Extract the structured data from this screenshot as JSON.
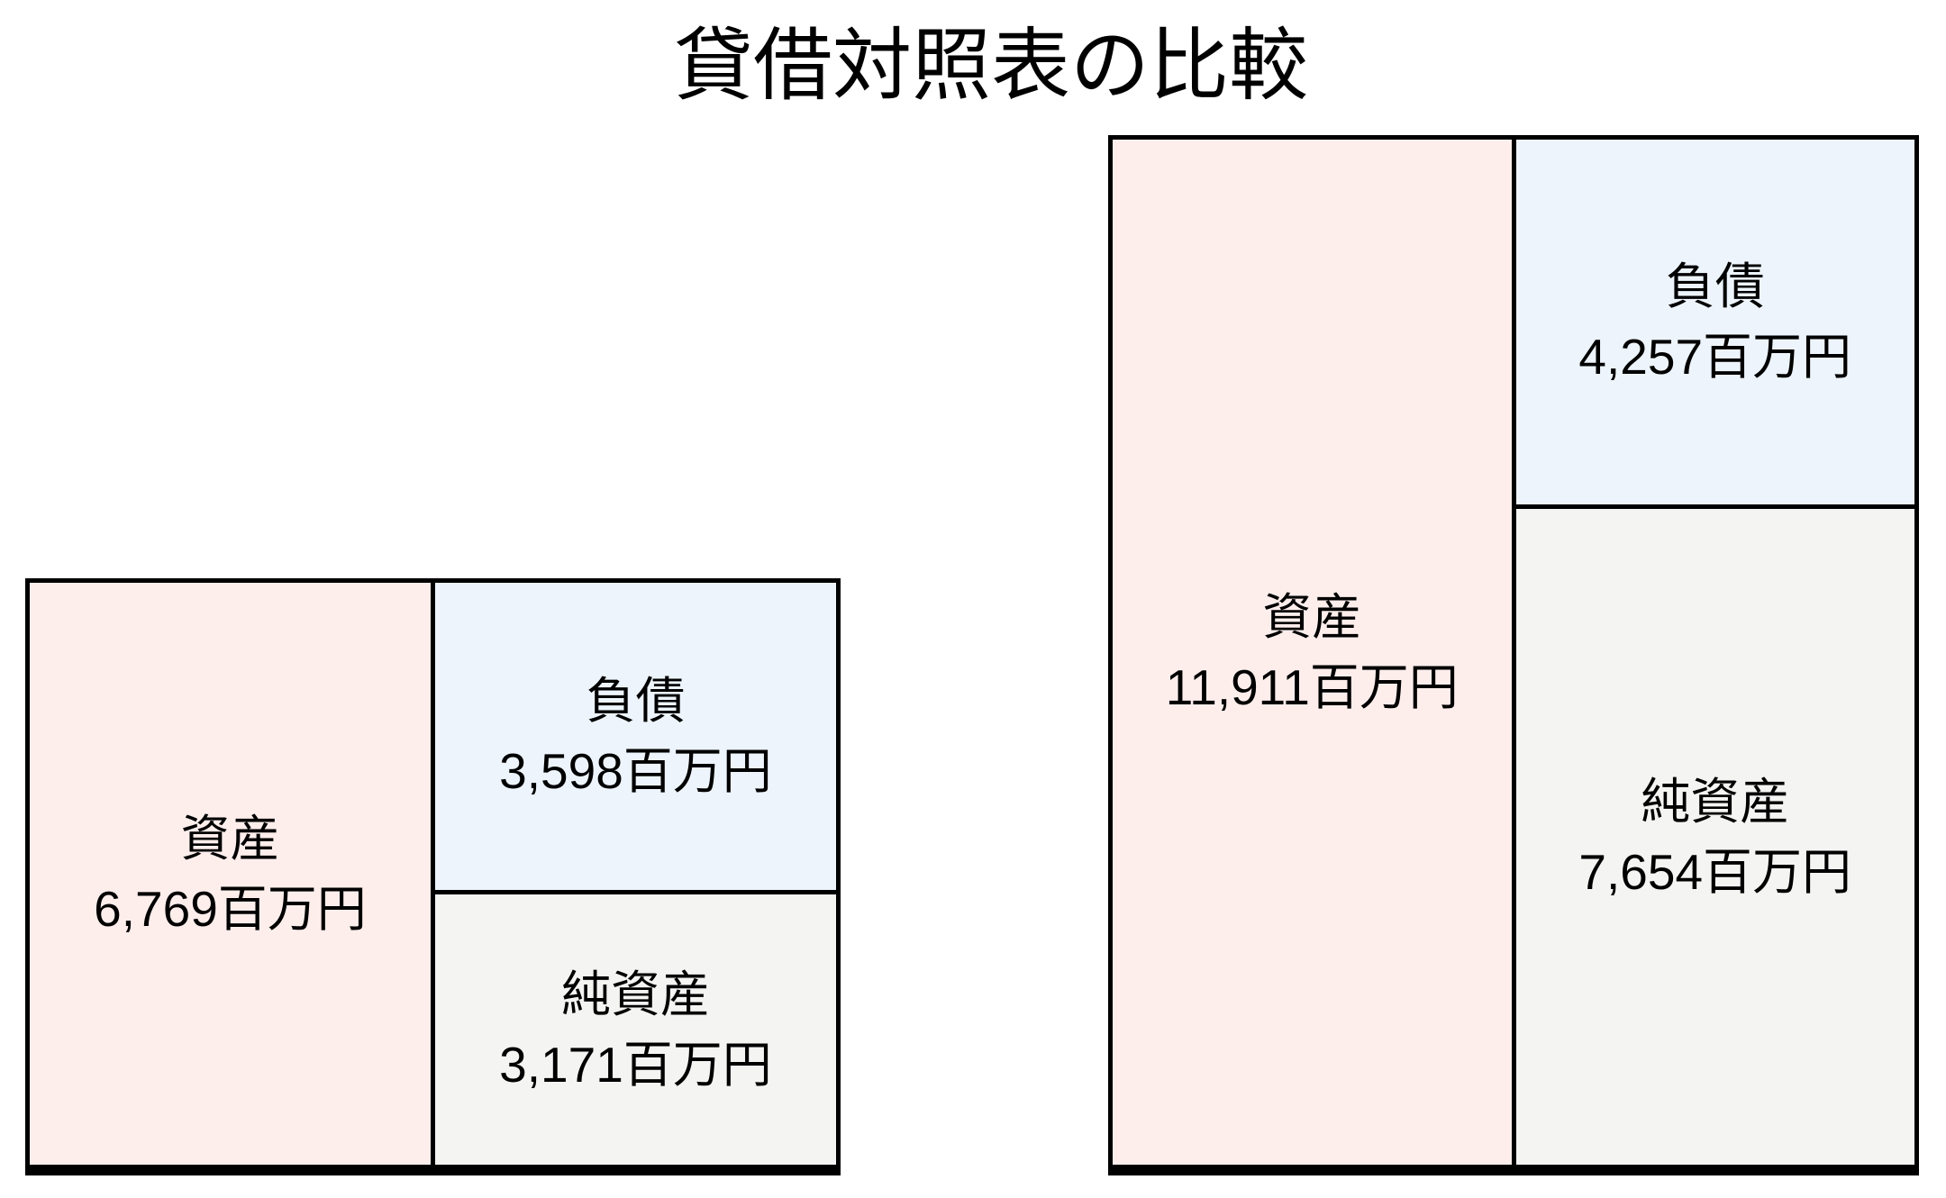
{
  "title": "貸借対照表の比較",
  "unit": "百万円",
  "colors": {
    "assets_fill": "#fdeeec",
    "liabilities_fill": "#edf4fb",
    "net_assets_fill": "#f4f4f3",
    "border": "#000000",
    "background": "#ffffff",
    "text": "#000000"
  },
  "balance_sheets": [
    {
      "assets": {
        "label": "資産",
        "value": 6769,
        "value_text": "6,769百万円"
      },
      "liabilities": {
        "label": "負債",
        "value": 3598,
        "value_text": "3,598百万円"
      },
      "net_assets": {
        "label": "純資産",
        "value": 3171,
        "value_text": "3,171百万円"
      }
    },
    {
      "assets": {
        "label": "資産",
        "value": 11911,
        "value_text": "11,911百万円"
      },
      "liabilities": {
        "label": "負債",
        "value": 4257,
        "value_text": "4,257百万円"
      },
      "net_assets": {
        "label": "純資産",
        "value": 7654,
        "value_text": "7,654百万円"
      }
    }
  ],
  "chart_data": {
    "type": "bar",
    "variant": "balance-sheet-box-comparison",
    "title": "貸借対照表の比較",
    "unit": "百万円",
    "series": [
      {
        "name": "資産",
        "values": [
          6769,
          11911
        ]
      },
      {
        "name": "負債",
        "values": [
          3598,
          4257
        ]
      },
      {
        "name": "純資産",
        "values": [
          3171,
          7654
        ]
      }
    ],
    "layout_hints": {
      "box_height_proportional_to": "資産",
      "left_column": "資産",
      "right_column_stack_top_to_bottom": [
        "負債",
        "純資産"
      ],
      "axes": false,
      "gridlines": false,
      "legend": false
    }
  }
}
